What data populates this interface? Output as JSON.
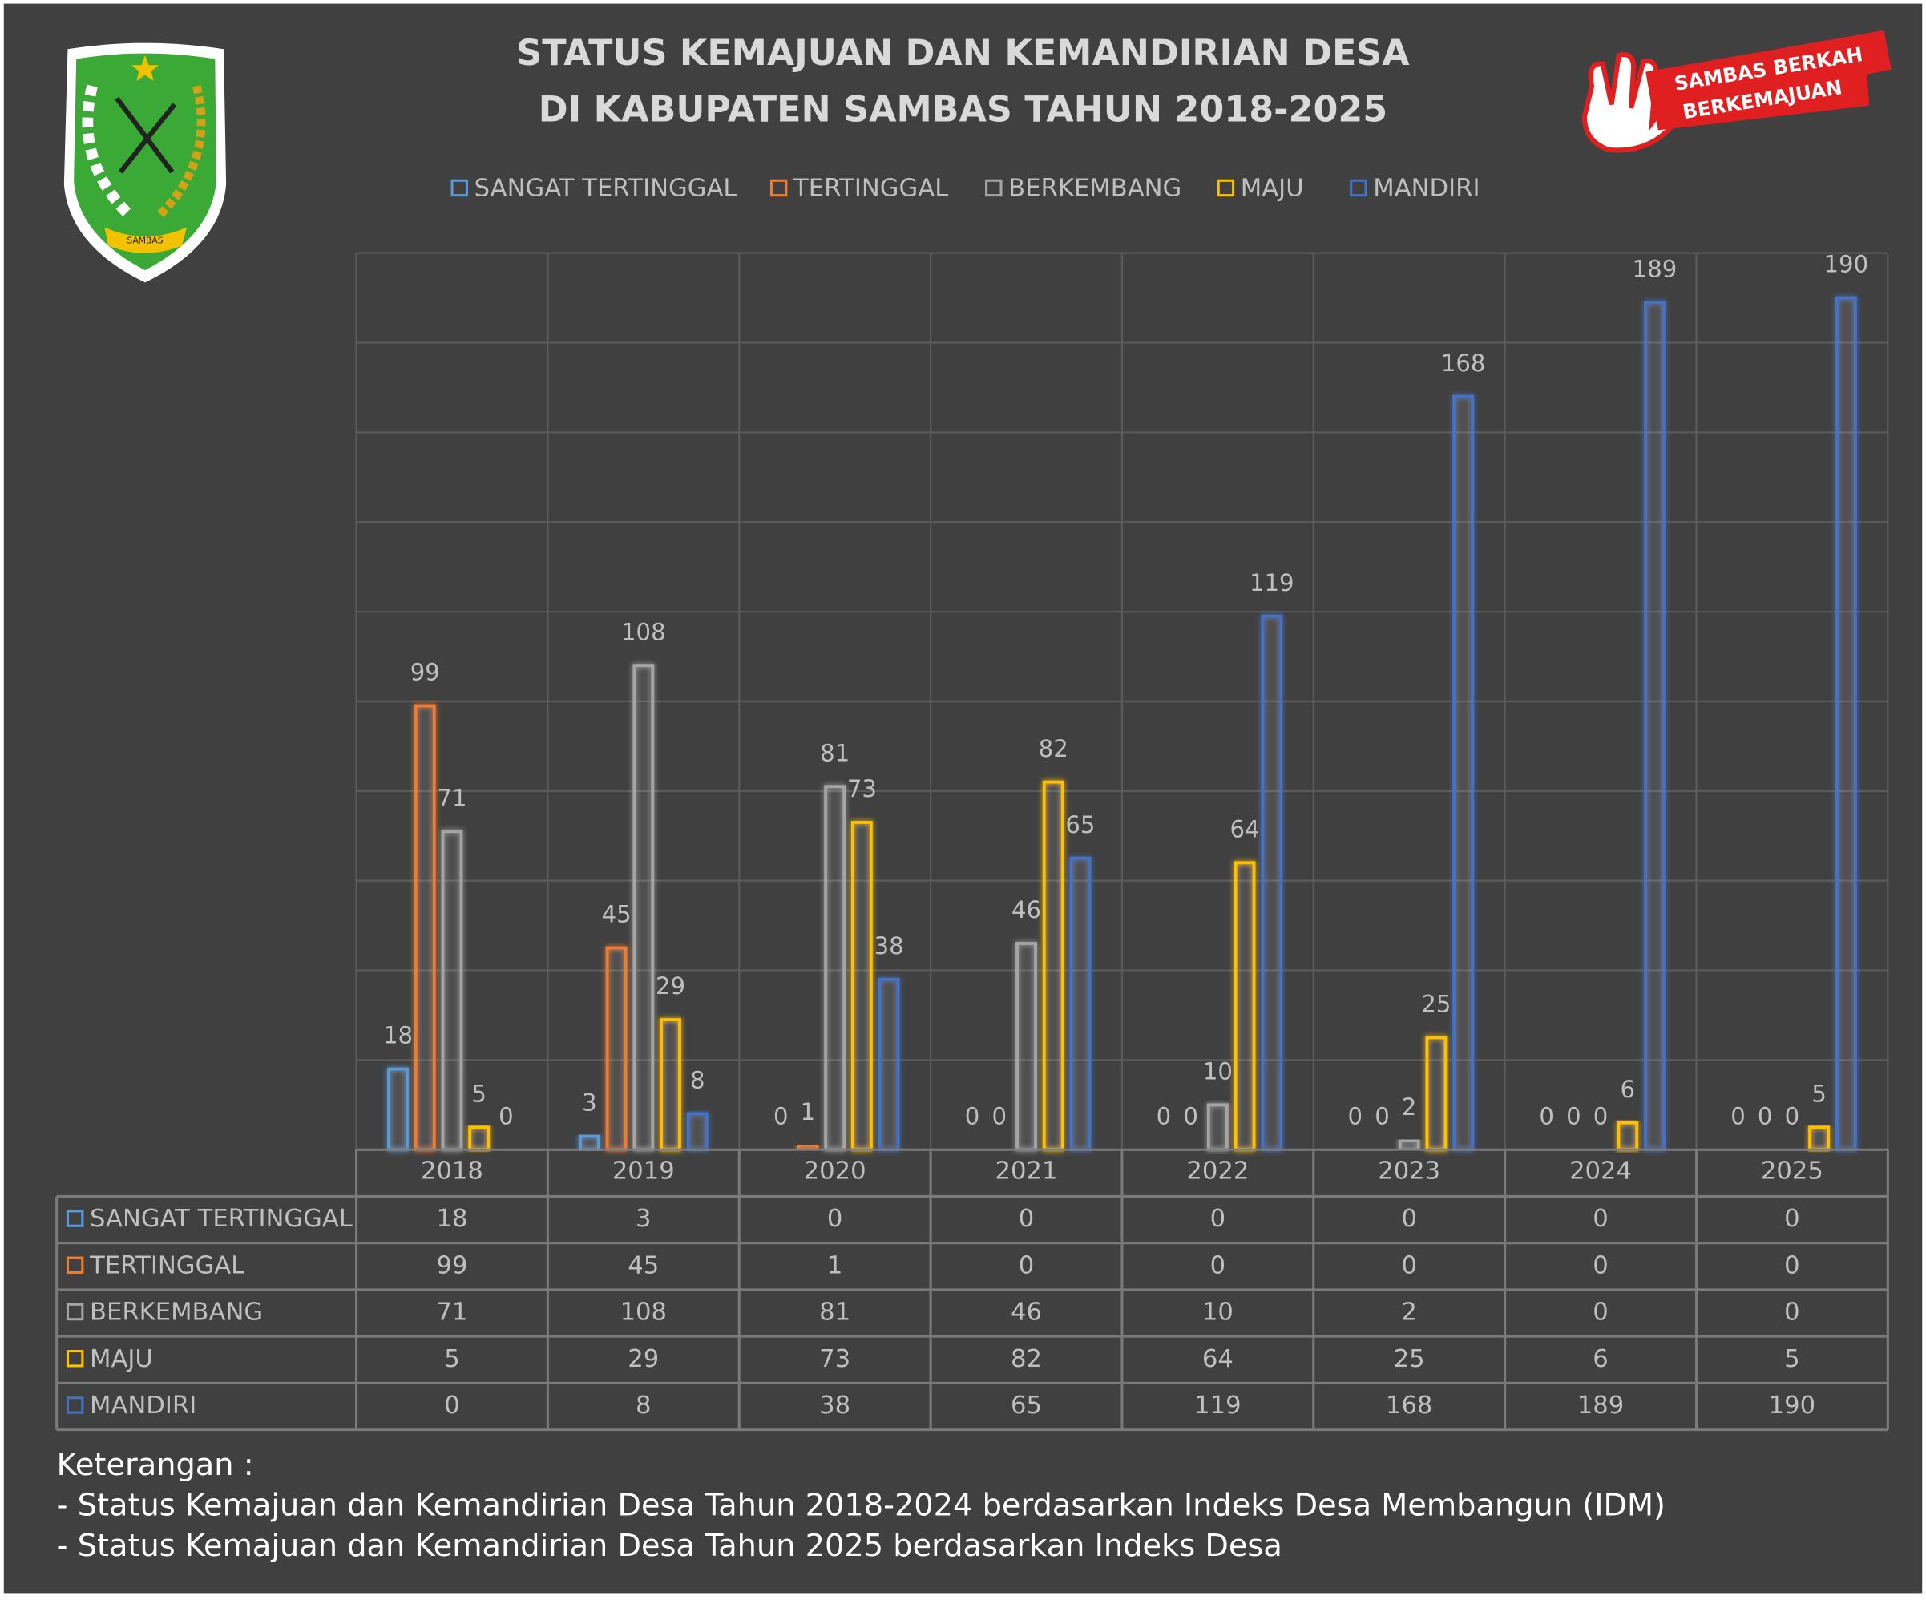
{
  "chart_data": {
    "type": "bar",
    "title_lines": [
      "STATUS KEMAJUAN DAN KEMANDIRIAN DESA",
      "DI KABUPATEN SAMBAS TAHUN 2018-2025"
    ],
    "categories": [
      "2018",
      "2019",
      "2020",
      "2021",
      "2022",
      "2023",
      "2024",
      "2025"
    ],
    "series": [
      {
        "name": "SANGAT TERTINGGAL",
        "color": "#5b9bd5",
        "values": [
          18,
          3,
          0,
          0,
          0,
          0,
          0,
          0
        ]
      },
      {
        "name": "TERTINGGAL",
        "color": "#ed7d31",
        "values": [
          99,
          45,
          1,
          0,
          0,
          0,
          0,
          0
        ]
      },
      {
        "name": "BERKEMBANG",
        "color": "#a5a5a5",
        "values": [
          71,
          108,
          81,
          46,
          10,
          2,
          0,
          0
        ]
      },
      {
        "name": "MAJU",
        "color": "#ffc000",
        "values": [
          5,
          29,
          73,
          82,
          64,
          25,
          6,
          5
        ]
      },
      {
        "name": "MANDIRI",
        "color": "#4472c4",
        "values": [
          0,
          8,
          38,
          65,
          119,
          168,
          189,
          190
        ]
      }
    ],
    "ylim": [
      0,
      200
    ],
    "yticks": [
      0,
      20,
      40,
      60,
      80,
      100,
      120,
      140,
      160,
      180,
      200
    ],
    "grid": true,
    "legend": "top",
    "data_table": true
  },
  "badge": [
    "SAMBAS BERKAH",
    "BERKEMAJUAN"
  ],
  "logo_text": "SAMBAS",
  "notes": {
    "heading": "Keterangan :",
    "lines": [
      "- Status Kemajuan dan Kemandirian Desa Tahun 2018-2024 berdasarkan Indeks Desa Membangun (IDM)",
      "- Status Kemajuan dan Kemandirian Desa Tahun 2025 berdasarkan Indeks Desa"
    ]
  }
}
